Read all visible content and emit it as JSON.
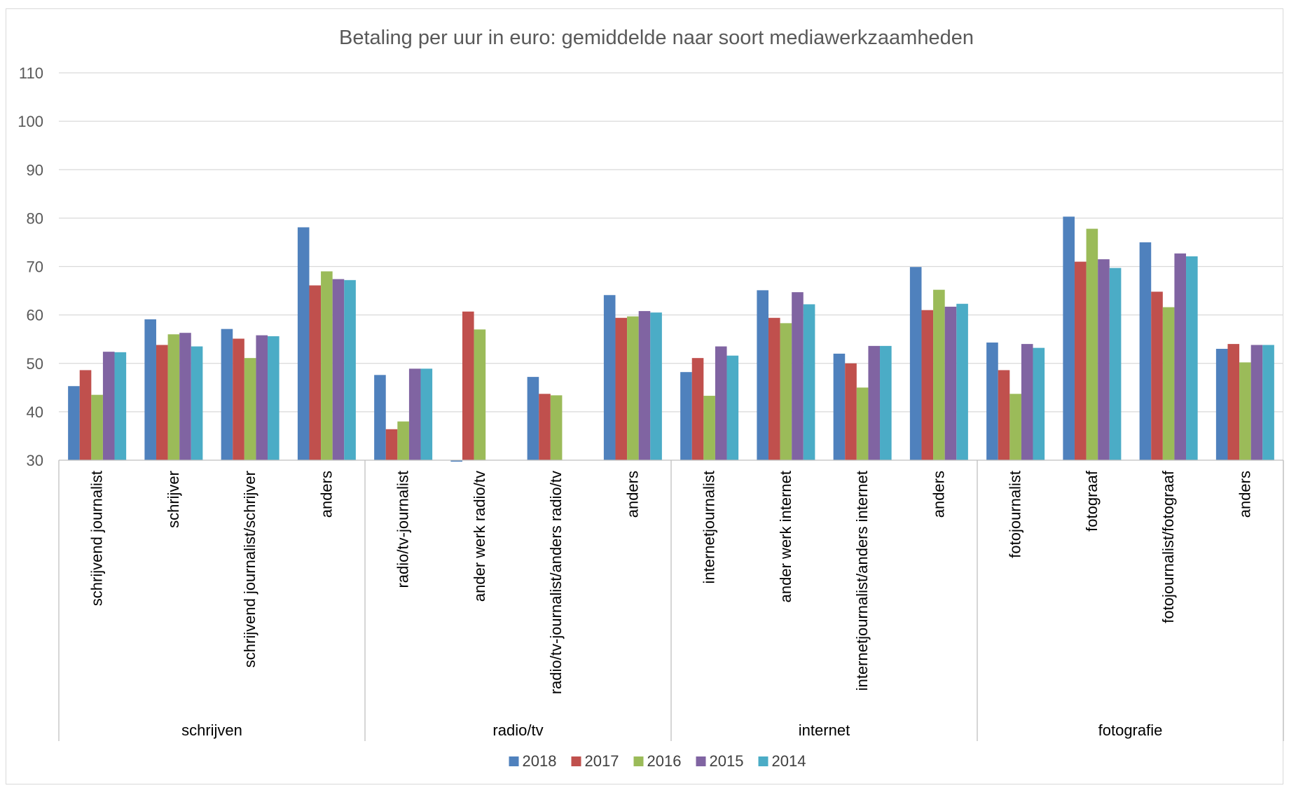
{
  "chart_data": {
    "type": "bar",
    "title": "Betaling per uur in euro: gemiddelde naar soort mediawerkzaamheden",
    "xlabel": "",
    "ylabel": "",
    "ylim": [
      30,
      110
    ],
    "yticks": [
      30,
      40,
      50,
      60,
      70,
      80,
      90,
      100,
      110
    ],
    "grid": true,
    "legend_position": "bottom",
    "groups": [
      {
        "label": "schrijven",
        "categories": [
          "schrijvend journalist",
          "schrijver",
          "schrijvend journalist/schrijver",
          "anders"
        ]
      },
      {
        "label": "radio/tv",
        "categories": [
          "radio/tv-journalist",
          "ander werk radio/tv",
          "radio/tv-journalist/anders radio/tv",
          "anders"
        ]
      },
      {
        "label": "internet",
        "categories": [
          "internetjournalist",
          "ander werk internet",
          "internetjournalist/anders internet",
          "anders"
        ]
      },
      {
        "label": "fotografie",
        "categories": [
          "fotojournalist",
          "fotograaf",
          "fotojournalist/fotograaf",
          "anders"
        ]
      }
    ],
    "series": [
      {
        "name": "2018",
        "color": "#4F81BD",
        "values": [
          45.3,
          59.1,
          57.1,
          78.1,
          47.6,
          29.7,
          47.2,
          64.1,
          48.2,
          65.1,
          52.0,
          69.9,
          54.3,
          80.3,
          75.0,
          53.0
        ]
      },
      {
        "name": "2017",
        "color": "#C0504D",
        "values": [
          48.6,
          53.8,
          55.1,
          66.1,
          36.4,
          60.7,
          43.7,
          59.4,
          51.1,
          59.4,
          50.0,
          61.0,
          48.6,
          71.0,
          64.8,
          54.0
        ]
      },
      {
        "name": "2016",
        "color": "#9BBB59",
        "values": [
          43.5,
          56.0,
          51.1,
          69.0,
          38.0,
          57.0,
          43.4,
          59.7,
          43.3,
          58.3,
          45.0,
          65.2,
          43.7,
          77.8,
          61.6,
          50.2
        ]
      },
      {
        "name": "2015",
        "color": "#8064A2",
        "values": [
          52.4,
          56.3,
          55.8,
          67.4,
          48.9,
          null,
          null,
          60.8,
          53.5,
          64.7,
          53.6,
          61.7,
          54.0,
          71.5,
          72.7,
          53.8
        ]
      },
      {
        "name": "2014",
        "color": "#4BACC6",
        "values": [
          52.3,
          53.5,
          55.6,
          67.2,
          48.9,
          null,
          null,
          60.5,
          51.6,
          62.2,
          53.6,
          62.3,
          53.2,
          69.7,
          72.1,
          53.8
        ]
      }
    ]
  }
}
